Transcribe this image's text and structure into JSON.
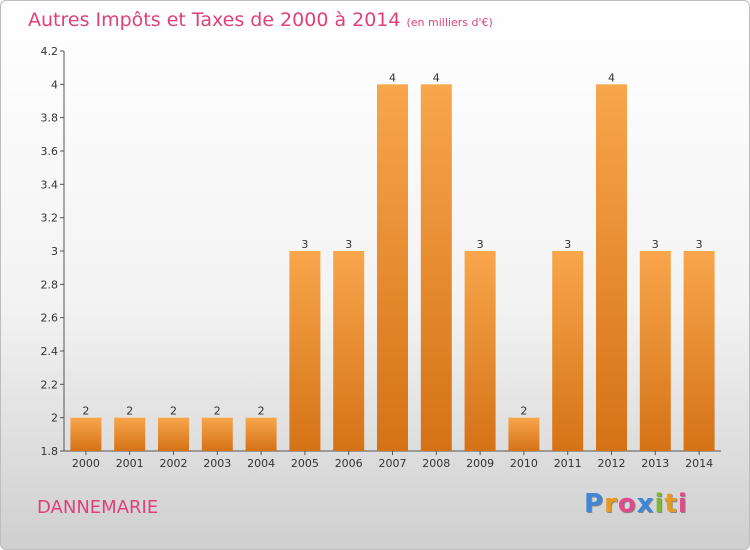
{
  "header": {
    "title": "Autres Impôts et Taxes de 2000 à 2014",
    "unit": "(en milliers d'€)"
  },
  "footer": {
    "town": "DANNEMARIE",
    "logo_letters": [
      "P",
      "r",
      "o",
      "x",
      "i",
      "t",
      "i"
    ],
    "logo_colors": [
      "#3f86d6",
      "#e89a1c",
      "#e04a8a",
      "#3f86d6",
      "#7ab833",
      "#e89a1c",
      "#e04a8a"
    ]
  },
  "colors": {
    "accent": "#e0407a",
    "bar_light": "#f8a64c",
    "bar_dark": "#d57216"
  },
  "chart_data": {
    "type": "bar",
    "title": "Autres Impôts et Taxes de 2000 à 2014",
    "xlabel": "",
    "ylabel": "",
    "categories": [
      "2000",
      "2001",
      "2002",
      "2003",
      "2004",
      "2005",
      "2006",
      "2007",
      "2008",
      "2009",
      "2010",
      "2011",
      "2012",
      "2013",
      "2014"
    ],
    "values": [
      2,
      2,
      2,
      2,
      2,
      3,
      3,
      4,
      4,
      3,
      2,
      3,
      4,
      3,
      3
    ],
    "data_labels": [
      "2",
      "2",
      "2",
      "2",
      "2",
      "3",
      "3",
      "4",
      "4",
      "3",
      "2",
      "3",
      "4",
      "3",
      "3"
    ],
    "ylim": [
      1.8,
      4.2
    ],
    "yticks": [
      1.8,
      2,
      2.2,
      2.4,
      2.6,
      2.8,
      3,
      3.2,
      3.4,
      3.6,
      3.8,
      4,
      4.2
    ],
    "ytick_labels": [
      "1.8",
      "2",
      "2.2",
      "2.4",
      "2.6",
      "2.8",
      "3",
      "3.2",
      "3.4",
      "3.6",
      "3.8",
      "4",
      "4.2"
    ],
    "grid": false,
    "legend": "none"
  }
}
